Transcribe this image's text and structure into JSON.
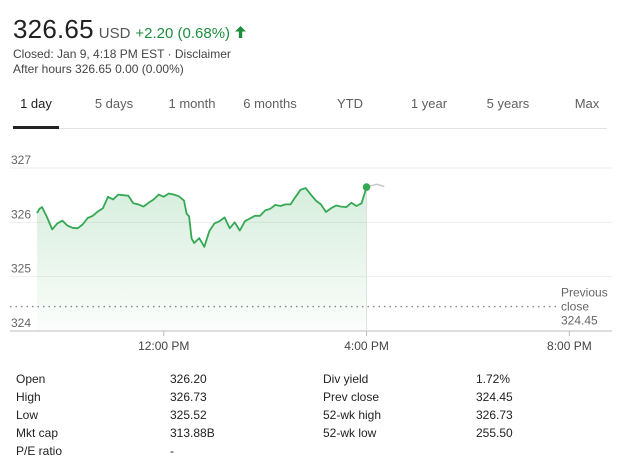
{
  "header": {
    "price": "326.65",
    "currency": "USD",
    "change": "+2.20 (0.68%)",
    "status_prefix": "Closed: Jan 9, 4:18 PM EST · ",
    "disclaimer": "Disclaimer",
    "after_hours": "After hours 326.65 0.00 (0.00%)",
    "arrow_icon": "arrow-up-icon"
  },
  "colors": {
    "positive": "#1e8e3e",
    "line": "#34a853",
    "tab_active_underline": "#222222",
    "grid": "#eeeeee",
    "axis_text": "#666666"
  },
  "tabs": [
    "1 day",
    "5 days",
    "1 month",
    "6 months",
    "YTD",
    "1 year",
    "5 years",
    "Max"
  ],
  "active_tab": "1 day",
  "chart_data": {
    "type": "area",
    "y_ticks": [
      "327",
      "326",
      "325",
      "324"
    ],
    "ylim": [
      324,
      327
    ],
    "x_ticks": [
      "12:00 PM",
      "4:00 PM",
      "8:00 PM"
    ],
    "x_tick_values_hours": [
      12,
      16,
      20
    ],
    "xlim_hours": [
      9.5,
      20.9
    ],
    "prev_close": 324.45,
    "prev_close_label": "Previous close",
    "prev_close_value_label": "324.45",
    "grid": true,
    "series": [
      {
        "x": [
          9.5,
          9.55,
          9.6,
          9.7,
          9.8,
          9.9,
          10.0,
          10.1,
          10.2,
          10.3,
          10.4,
          10.5,
          10.6,
          10.7,
          10.8,
          10.9,
          11.0,
          11.1,
          11.2,
          11.3,
          11.4,
          11.5,
          11.6,
          11.7,
          11.8,
          11.9,
          12.0,
          12.1,
          12.2,
          12.3,
          12.4,
          12.45,
          12.5,
          12.55,
          12.6,
          12.7,
          12.8,
          12.9,
          13.0,
          13.1,
          13.2,
          13.3,
          13.4,
          13.5,
          13.6,
          13.7,
          13.8,
          13.9,
          14.0,
          14.1,
          14.2,
          14.3,
          14.4,
          14.5,
          14.6,
          14.7,
          14.8,
          14.9,
          15.0,
          15.1,
          15.2,
          15.3,
          15.4,
          15.5,
          15.6,
          15.7,
          15.8,
          15.9,
          16.0
        ],
        "y": [
          326.17,
          326.25,
          326.28,
          326.09,
          325.87,
          325.98,
          326.03,
          325.94,
          325.9,
          325.89,
          325.96,
          326.08,
          326.12,
          326.2,
          326.26,
          326.47,
          326.42,
          326.51,
          326.5,
          326.49,
          326.35,
          326.33,
          326.29,
          326.36,
          326.42,
          326.51,
          326.47,
          326.53,
          326.51,
          326.48,
          326.4,
          326.16,
          326.11,
          325.7,
          325.62,
          325.71,
          325.55,
          325.84,
          325.98,
          326.02,
          326.09,
          325.89,
          326.0,
          325.85,
          326.02,
          326.07,
          326.12,
          326.12,
          326.22,
          326.25,
          326.32,
          326.3,
          326.33,
          326.33,
          326.47,
          326.6,
          326.63,
          326.51,
          326.4,
          326.33,
          326.19,
          326.26,
          326.31,
          326.29,
          326.28,
          326.36,
          326.3,
          326.35,
          326.65
        ]
      },
      {
        "x": [
          16.0,
          16.2,
          16.35
        ],
        "y": [
          326.65,
          326.7,
          326.66
        ]
      }
    ]
  },
  "stats": {
    "left": [
      {
        "label": "Open",
        "value": "326.20"
      },
      {
        "label": "High",
        "value": "326.73"
      },
      {
        "label": "Low",
        "value": "325.52"
      },
      {
        "label": "Mkt cap",
        "value": "313.88B"
      },
      {
        "label": "P/E ratio",
        "value": "-"
      }
    ],
    "right": [
      {
        "label": "Div yield",
        "value": "1.72%"
      },
      {
        "label": "Prev close",
        "value": "324.45"
      },
      {
        "label": "52-wk high",
        "value": "326.73"
      },
      {
        "label": "52-wk low",
        "value": "255.50"
      }
    ]
  }
}
